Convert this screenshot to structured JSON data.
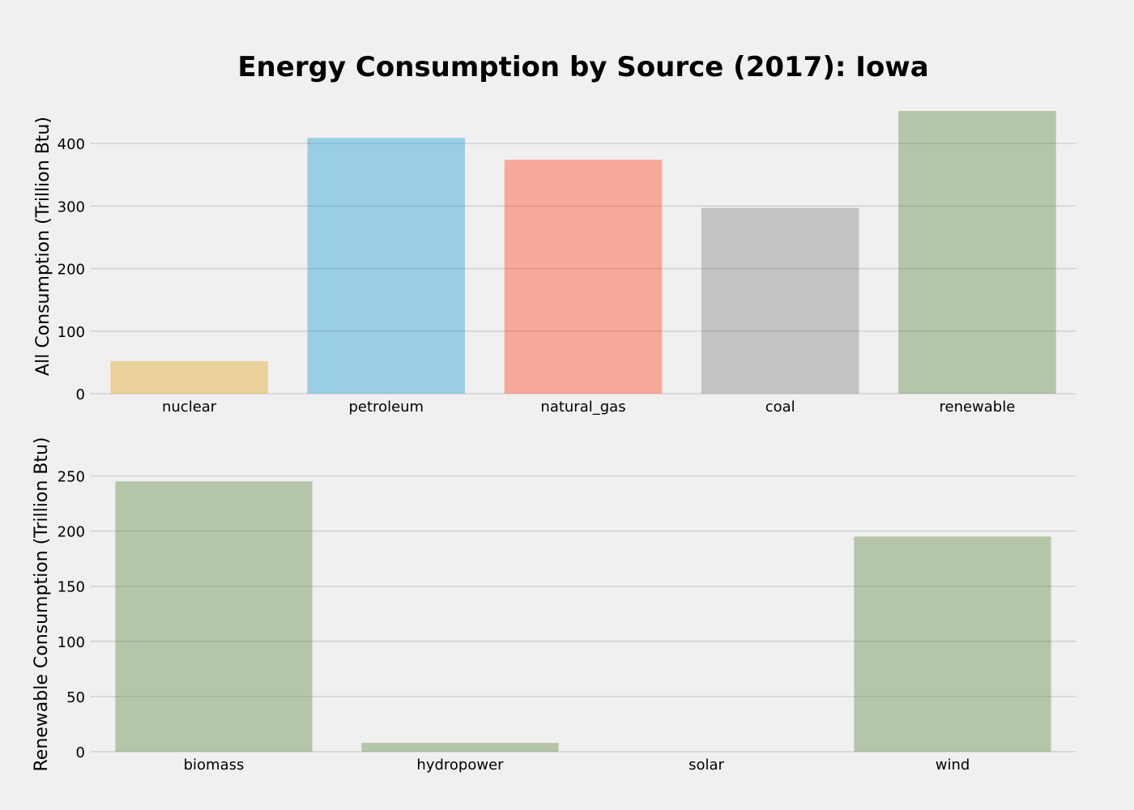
{
  "figure": {
    "title": "Energy Consumption by Source (2017): Iowa"
  },
  "chart_data": [
    {
      "type": "bar",
      "title": "",
      "xlabel": "",
      "ylabel": "All Consumption (Trillion Btu)",
      "categories": [
        "nuclear",
        "petroleum",
        "natural_gas",
        "coal",
        "renewable"
      ],
      "values": [
        52,
        409,
        374,
        297,
        452
      ],
      "colors": [
        "#e5ae38",
        "#30a2da",
        "#fc4f30",
        "#8b8b8b",
        "#6d904f"
      ],
      "bar_opacity": 0.45,
      "ylim": [
        0,
        452
      ],
      "yticks": [
        0,
        100,
        200,
        300,
        400
      ],
      "grid": "y"
    },
    {
      "type": "bar",
      "title": "",
      "xlabel": "",
      "ylabel": "Renewable Consumption (Trillion Btu)",
      "categories": [
        "biomass",
        "hydropower",
        "solar",
        "wind"
      ],
      "values": [
        245,
        8,
        0,
        195
      ],
      "colors": [
        "#6d904f",
        "#6d904f",
        "#6d904f",
        "#6d904f"
      ],
      "bar_opacity": 0.45,
      "ylim": [
        0,
        257
      ],
      "yticks": [
        0,
        50,
        100,
        150,
        200,
        250
      ],
      "grid": "y"
    }
  ]
}
